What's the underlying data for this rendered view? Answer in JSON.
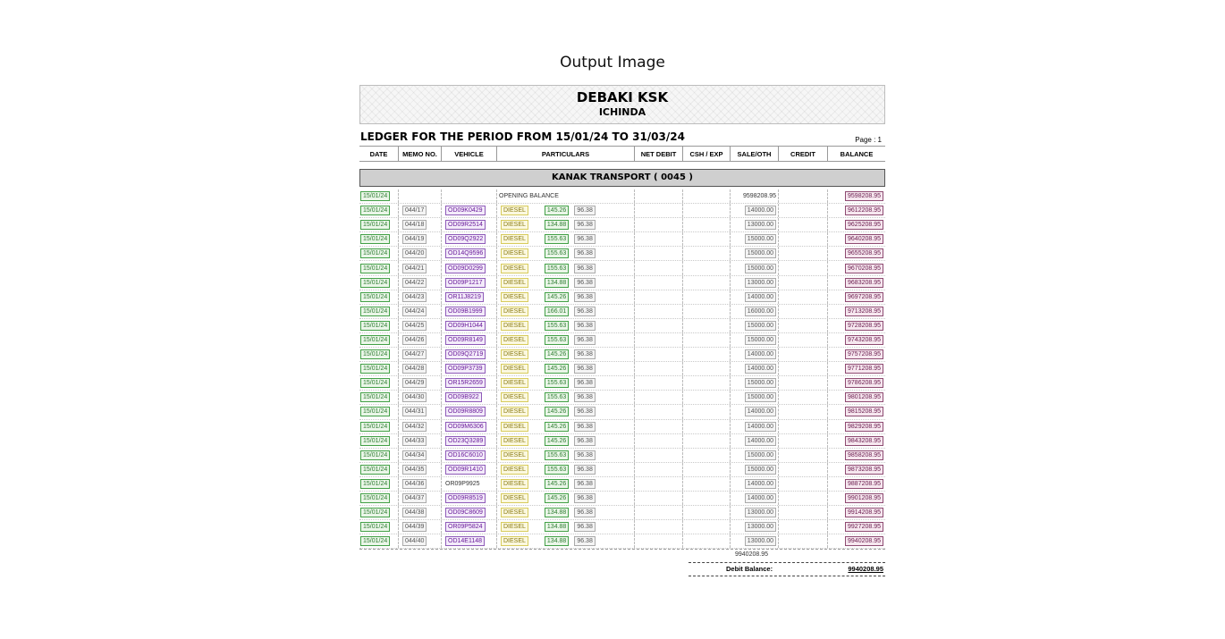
{
  "caption": "Output Image",
  "header": {
    "company": "DEBAKI KSK",
    "place": "ICHINDA"
  },
  "period_title": "LEDGER FOR THE PERIOD FROM 15/01/24 TO 31/03/24",
  "page_label": "Page : 1",
  "columns": [
    "DATE",
    "MEMO NO.",
    "VEHICLE",
    "PARTICULARS",
    "NET DEBIT",
    "CSH / EXP",
    "SALE/OTH",
    "CREDIT",
    "BALANCE"
  ],
  "party": "KANAK TRANSPORT ( 0045 )",
  "opening": {
    "date": "15/01/24",
    "particulars": "OPENING BALANCE",
    "sale": "9598208.95",
    "balance": "9598208.95"
  },
  "rows": [
    {
      "date": "15/01/24",
      "memo": "044/17",
      "vehicle": "OD09K0429",
      "item": "DIESEL",
      "qty": "145.26",
      "rate": "96.38",
      "sale": "14000.00",
      "balance": "9612208.95"
    },
    {
      "date": "15/01/24",
      "memo": "044/18",
      "vehicle": "OD09R2514",
      "item": "DIESEL",
      "qty": "134.88",
      "rate": "96.38",
      "sale": "13000.00",
      "balance": "9625208.95"
    },
    {
      "date": "15/01/24",
      "memo": "044/19",
      "vehicle": "OD09Q2922",
      "item": "DIESEL",
      "qty": "155.63",
      "rate": "96.38",
      "sale": "15000.00",
      "balance": "9640208.95"
    },
    {
      "date": "15/01/24",
      "memo": "044/20",
      "vehicle": "OD14Q9596",
      "item": "DIESEL",
      "qty": "155.63",
      "rate": "96.38",
      "sale": "15000.00",
      "balance": "9655208.95"
    },
    {
      "date": "15/01/24",
      "memo": "044/21",
      "vehicle": "OD09D0299",
      "item": "DIESEL",
      "qty": "155.63",
      "rate": "96.38",
      "sale": "15000.00",
      "balance": "9670208.95"
    },
    {
      "date": "15/01/24",
      "memo": "044/22",
      "vehicle": "OD09P1217",
      "item": "DIESEL",
      "qty": "134.88",
      "rate": "96.38",
      "sale": "13000.00",
      "balance": "9683208.95"
    },
    {
      "date": "15/01/24",
      "memo": "044/23",
      "vehicle": "OR11J8219",
      "item": "DIESEL",
      "qty": "145.26",
      "rate": "96.38",
      "sale": "14000.00",
      "balance": "9697208.95"
    },
    {
      "date": "15/01/24",
      "memo": "044/24",
      "vehicle": "OD09B1999",
      "item": "DIESEL",
      "qty": "166.01",
      "rate": "96.38",
      "sale": "16000.00",
      "balance": "9713208.95"
    },
    {
      "date": "15/01/24",
      "memo": "044/25",
      "vehicle": "OD09H1044",
      "item": "DIESEL",
      "qty": "155.63",
      "rate": "96.38",
      "sale": "15000.00",
      "balance": "9728208.95"
    },
    {
      "date": "15/01/24",
      "memo": "044/26",
      "vehicle": "OD09R8149",
      "item": "DIESEL",
      "qty": "155.63",
      "rate": "96.38",
      "sale": "15000.00",
      "balance": "9743208.95"
    },
    {
      "date": "15/01/24",
      "memo": "044/27",
      "vehicle": "OD09Q2719",
      "item": "DIESEL",
      "qty": "145.26",
      "rate": "96.38",
      "sale": "14000.00",
      "balance": "9757208.95"
    },
    {
      "date": "15/01/24",
      "memo": "044/28",
      "vehicle": "OD09P3739",
      "item": "DIESEL",
      "qty": "145.26",
      "rate": "96.38",
      "sale": "14000.00",
      "balance": "9771208.95"
    },
    {
      "date": "15/01/24",
      "memo": "044/29",
      "vehicle": "OR15R2659",
      "item": "DIESEL",
      "qty": "155.63",
      "rate": "96.38",
      "sale": "15000.00",
      "balance": "9786208.95"
    },
    {
      "date": "15/01/24",
      "memo": "044/30",
      "vehicle": "OD09B922",
      "item": "DIESEL",
      "qty": "155.63",
      "rate": "96.38",
      "sale": "15000.00",
      "balance": "9801208.95"
    },
    {
      "date": "15/01/24",
      "memo": "044/31",
      "vehicle": "OD09R8809",
      "item": "DIESEL",
      "qty": "145.26",
      "rate": "96.38",
      "sale": "14000.00",
      "balance": "9815208.95"
    },
    {
      "date": "15/01/24",
      "memo": "044/32",
      "vehicle": "OD09M6306",
      "item": "DIESEL",
      "qty": "145.26",
      "rate": "96.38",
      "sale": "14000.00",
      "balance": "9829208.95"
    },
    {
      "date": "15/01/24",
      "memo": "044/33",
      "vehicle": "OD23Q3289",
      "item": "DIESEL",
      "qty": "145.26",
      "rate": "96.38",
      "sale": "14000.00",
      "balance": "9843208.95"
    },
    {
      "date": "15/01/24",
      "memo": "044/34",
      "vehicle": "OD16C6010",
      "item": "DIESEL",
      "qty": "155.63",
      "rate": "96.38",
      "sale": "15000.00",
      "balance": "9858208.95"
    },
    {
      "date": "15/01/24",
      "memo": "044/35",
      "vehicle": "OD09R1410",
      "item": "DIESEL",
      "qty": "155.63",
      "rate": "96.38",
      "sale": "15000.00",
      "balance": "9873208.95"
    },
    {
      "date": "15/01/24",
      "memo": "044/36",
      "vehicle": "OR09P9925",
      "item": "DIESEL",
      "qty": "145.26",
      "rate": "96.38",
      "sale": "14000.00",
      "balance": "9887208.95",
      "vehicle_plain": true
    },
    {
      "date": "15/01/24",
      "memo": "044/37",
      "vehicle": "OD09R8519",
      "item": "DIESEL",
      "qty": "145.26",
      "rate": "96.38",
      "sale": "14000.00",
      "balance": "9901208.95"
    },
    {
      "date": "15/01/24",
      "memo": "044/38",
      "vehicle": "OD09C8609",
      "item": "DIESEL",
      "qty": "134.88",
      "rate": "96.38",
      "sale": "13000.00",
      "balance": "9914208.95"
    },
    {
      "date": "15/01/24",
      "memo": "044/39",
      "vehicle": "OR09P5824",
      "item": "DIESEL",
      "qty": "134.88",
      "rate": "96.38",
      "sale": "13000.00",
      "balance": "9927208.95"
    },
    {
      "date": "15/01/24",
      "memo": "044/40",
      "vehicle": "OD14E1148",
      "item": "DIESEL",
      "qty": "134.88",
      "rate": "96.38",
      "sale": "13000.00",
      "balance": "9940208.95"
    }
  ],
  "total": "9940208.95",
  "debit_balance": {
    "label": "Debit Balance:",
    "value": "9940208.95"
  }
}
